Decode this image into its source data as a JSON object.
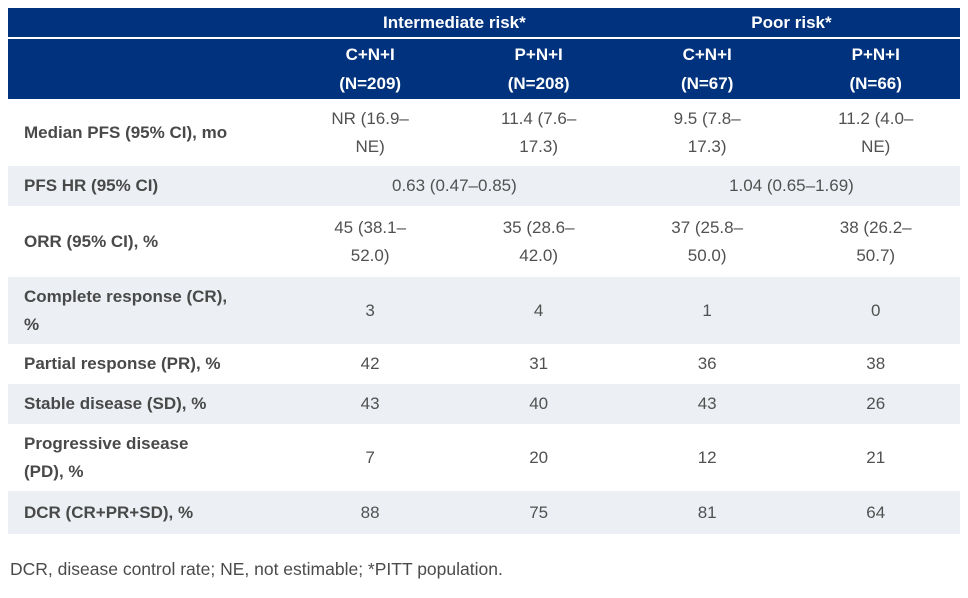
{
  "colors": {
    "header_bg": "#00327d",
    "stripe_bg": "#ecf0f4",
    "header_text": "#ffffff",
    "body_text": "#4d4d4d"
  },
  "table": {
    "group_headers": [
      "Intermediate risk*",
      "Poor risk*"
    ],
    "column_headers": [
      "C+N+I\n(N=209)",
      "P+N+I\n(N=208)",
      "C+N+I\n(N=67)",
      "P+N+I\n(N=66)"
    ],
    "rows": [
      {
        "label": "Median PFS (95% CI), mo",
        "cells": [
          "NR (16.9–\nNE)",
          "11.4 (7.6–\n17.3)",
          "9.5 (7.8–\n17.3)",
          "11.2 (4.0–\nNE)"
        ]
      },
      {
        "label": "PFS HR (95% CI)",
        "cells": [
          "0.63 (0.47–0.85)",
          "1.04 (0.65–1.69)"
        ]
      },
      {
        "label": "ORR (95% CI), %",
        "cells": [
          "45 (38.1–\n52.0)",
          "35 (28.6–\n42.0)",
          "37 (25.8–\n50.0)",
          "38 (26.2–\n50.7)"
        ]
      },
      {
        "label": "Complete response (CR),\n%",
        "cells": [
          "3",
          "4",
          "1",
          "0"
        ]
      },
      {
        "label": "Partial response (PR), %",
        "cells": [
          "42",
          "31",
          "36",
          "38"
        ]
      },
      {
        "label": "Stable disease (SD), %",
        "cells": [
          "43",
          "40",
          "43",
          "26"
        ]
      },
      {
        "label": "Progressive disease\n(PD), %",
        "cells": [
          "7",
          "20",
          "12",
          "21"
        ]
      },
      {
        "label": "DCR (CR+PR+SD), %",
        "cells": [
          "88",
          "75",
          "81",
          "64"
        ]
      }
    ]
  },
  "footnote": "DCR, disease control rate; NE, not estimable; *PITT population.",
  "chart_data": {
    "type": "table",
    "column_groups": [
      {
        "label": "Intermediate risk*",
        "columns": [
          "C+N+I (N=209)",
          "P+N+I (N=208)"
        ]
      },
      {
        "label": "Poor risk*",
        "columns": [
          "C+N+I (N=67)",
          "P+N+I (N=66)"
        ]
      }
    ],
    "rows": [
      {
        "metric": "Median PFS (95% CI), mo",
        "values": [
          "NR (16.9–NE)",
          "11.4 (7.6–17.3)",
          "9.5 (7.8–17.3)",
          "11.2 (4.0–NE)"
        ]
      },
      {
        "metric": "PFS HR (95% CI)",
        "values": [
          "0.63 (0.47–0.85)",
          "1.04 (0.65–1.69)"
        ],
        "merged_per_group": true
      },
      {
        "metric": "ORR (95% CI), %",
        "values": [
          "45 (38.1–52.0)",
          "35 (28.6–42.0)",
          "37 (25.8–50.0)",
          "38 (26.2–50.7)"
        ]
      },
      {
        "metric": "Complete response (CR), %",
        "values": [
          3,
          4,
          1,
          0
        ]
      },
      {
        "metric": "Partial response (PR), %",
        "values": [
          42,
          31,
          36,
          38
        ]
      },
      {
        "metric": "Stable disease (SD), %",
        "values": [
          43,
          40,
          43,
          26
        ]
      },
      {
        "metric": "Progressive disease (PD), %",
        "values": [
          7,
          20,
          12,
          21
        ]
      },
      {
        "metric": "DCR (CR+PR+SD), %",
        "values": [
          88,
          75,
          81,
          64
        ]
      }
    ],
    "footnote": "DCR, disease control rate; NE, not estimable; *PITT population."
  }
}
